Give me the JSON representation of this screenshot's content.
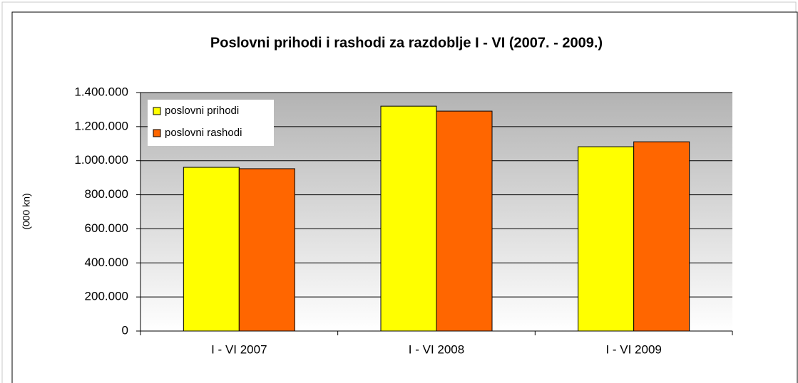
{
  "chart_data": {
    "type": "bar",
    "title": "Poslovni prihodi i rashodi za razdoblje I - VI (2007. - 2009.)",
    "y_label": "(000 kn)",
    "categories": [
      "I - VI 2007",
      "I - VI 2008",
      "I - VI 2009"
    ],
    "series": [
      {
        "name": "poslovni prihodi",
        "color": "#ffff00",
        "values": [
          961000,
          1320000,
          1082000
        ]
      },
      {
        "name": "poslovni rashodi",
        "color": "#ff6600",
        "values": [
          953000,
          1291000,
          1111000
        ]
      }
    ],
    "ylim": [
      0,
      1400000
    ],
    "yticks": [
      0,
      {
        "value": 200000,
        "label": "200.000"
      },
      {
        "value": 400000,
        "label": "400.000"
      },
      {
        "value": 600000,
        "label": "600.000"
      },
      {
        "value": 800000,
        "label": "800.000"
      },
      {
        "value": 1000000,
        "label": "1.000.000"
      },
      {
        "value": 1200000,
        "label": "1.200.000"
      },
      {
        "value": 1400000,
        "label": "1.400.000"
      }
    ],
    "grid": true,
    "legend": "top-left"
  }
}
